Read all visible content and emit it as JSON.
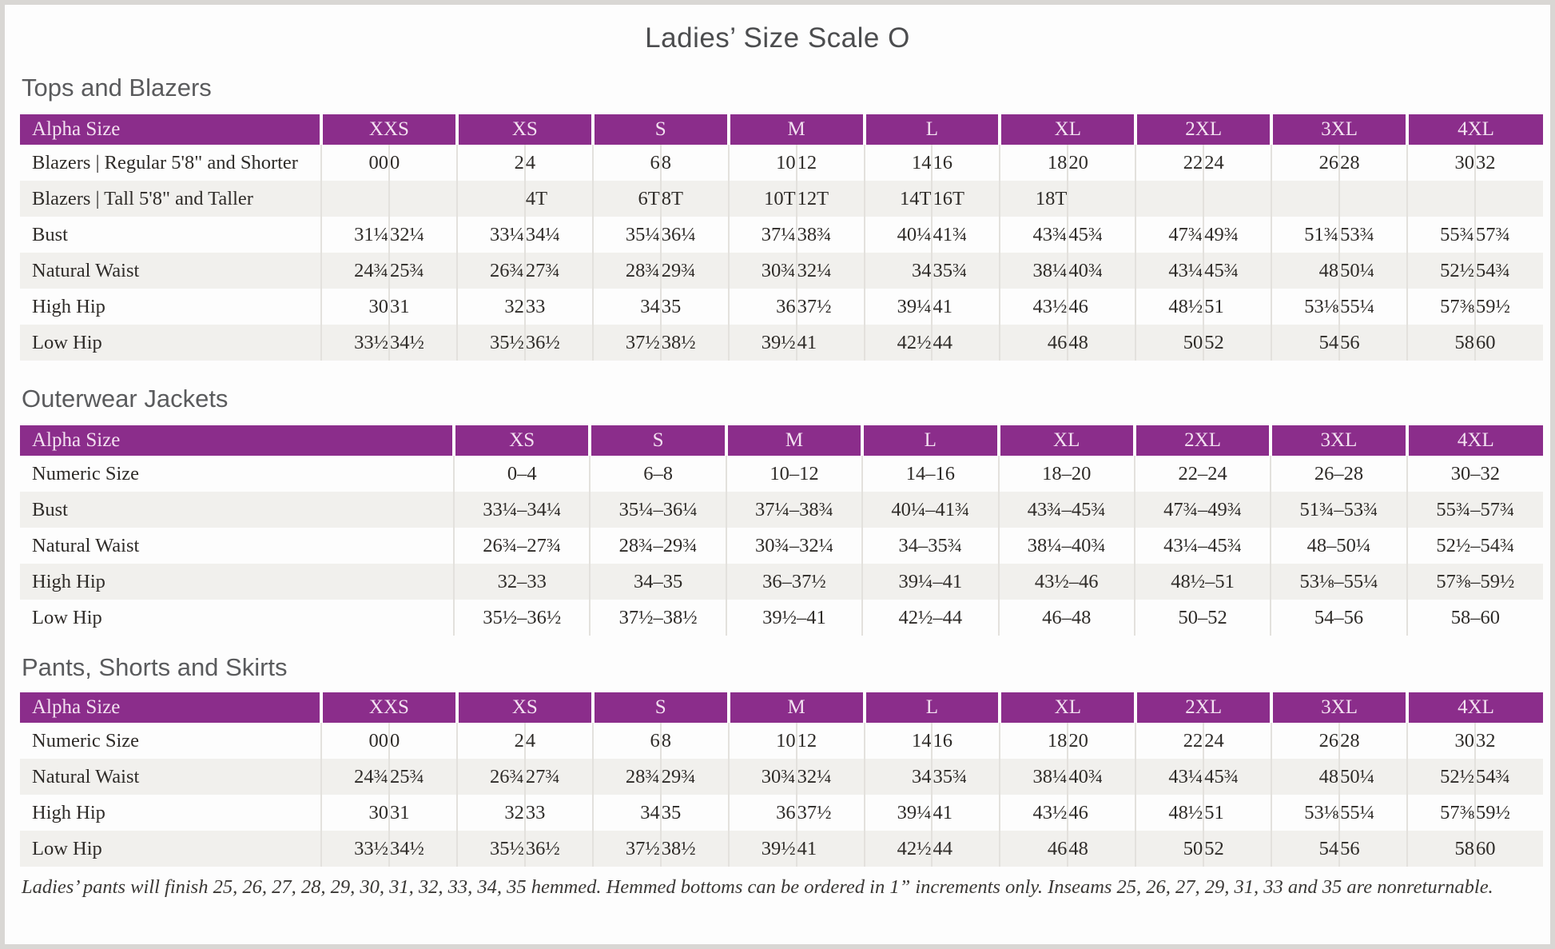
{
  "page": {
    "title": "Ladies’ Size Scale O",
    "footnote": "Ladies’ pants will finish 25, 26, 27, 28, 29, 30, 31, 32, 33, 34, 35 hemmed. Hemmed bottoms can be ordered in 1” increments only. Inseams 25, 26, 27, 29, 31, 33 and 35 are nonreturnable."
  },
  "colors": {
    "header_background": "#8b2d8b",
    "header_text": "#f3e1f1",
    "row_stripe": "#f1f0ed",
    "divider": "#e3e1dd"
  },
  "tables": [
    {
      "id": "tops-and-blazers",
      "section_title": "Tops and Blazers",
      "type": "paired",
      "header_label": "Alpha Size",
      "sizes": [
        "XXS",
        "XS",
        "S",
        "M",
        "L",
        "XL",
        "2XL",
        "3XL",
        "4XL"
      ],
      "rows": [
        {
          "label": "Blazers  |  Regular 5'8\" and Shorter",
          "cells": [
            "00",
            "0",
            "2",
            "4",
            "6",
            "8",
            "10",
            "12",
            "14",
            "16",
            "18",
            "20",
            "22",
            "24",
            "26",
            "28",
            "30",
            "32"
          ]
        },
        {
          "label": "Blazers  |  Tall 5'8\" and Taller",
          "cells": [
            "",
            "",
            "",
            "4T",
            "6T",
            "8T",
            "10T",
            "12T",
            "14T",
            "16T",
            "18T",
            "",
            "",
            "",
            "",
            "",
            "",
            ""
          ]
        },
        {
          "label": "Bust",
          "cells": [
            "31¼",
            "32¼",
            "33¼",
            "34¼",
            "35¼",
            "36¼",
            "37¼",
            "38¾",
            "40¼",
            "41¾",
            "43¾",
            "45¾",
            "47¾",
            "49¾",
            "51¾",
            "53¾",
            "55¾",
            "57¾"
          ]
        },
        {
          "label": "Natural Waist",
          "cells": [
            "24¾",
            "25¾",
            "26¾",
            "27¾",
            "28¾",
            "29¾",
            "30¾",
            "32¼",
            "34",
            "35¾",
            "38¼",
            "40¾",
            "43¼",
            "45¾",
            "48",
            "50¼",
            "52½",
            "54¾"
          ]
        },
        {
          "label": "High Hip",
          "cells": [
            "30",
            "31",
            "32",
            "33",
            "34",
            "35",
            "36",
            "37½",
            "39¼",
            "41",
            "43½",
            "46",
            "48½",
            "51",
            "53⅛",
            "55¼",
            "57⅜",
            "59½"
          ]
        },
        {
          "label": "Low Hip",
          "cells": [
            "33½",
            "34½",
            "35½",
            "36½",
            "37½",
            "38½",
            "39½",
            "41",
            "42½",
            "44",
            "46",
            "48",
            "50",
            "52",
            "54",
            "56",
            "58",
            "60"
          ]
        }
      ]
    },
    {
      "id": "outerwear-jackets",
      "section_title": "Outerwear Jackets",
      "type": "single",
      "header_label": "Alpha Size",
      "sizes": [
        "XS",
        "S",
        "M",
        "L",
        "XL",
        "2XL",
        "3XL",
        "4XL"
      ],
      "rows": [
        {
          "label": "Numeric Size",
          "cells": [
            "0–4",
            "6–8",
            "10–12",
            "14–16",
            "18–20",
            "22–24",
            "26–28",
            "30–32"
          ]
        },
        {
          "label": "Bust",
          "cells": [
            "33¼–34¼",
            "35¼–36¼",
            "37¼–38¾",
            "40¼–41¾",
            "43¾–45¾",
            "47¾–49¾",
            "51¾–53¾",
            "55¾–57¾"
          ]
        },
        {
          "label": "Natural Waist",
          "cells": [
            "26¾–27¾",
            "28¾–29¾",
            "30¾–32¼",
            "34–35¾",
            "38¼–40¾",
            "43¼–45¾",
            "48–50¼",
            "52½–54¾"
          ]
        },
        {
          "label": "High Hip",
          "cells": [
            "32–33",
            "34–35",
            "36–37½",
            "39¼–41",
            "43½–46",
            "48½–51",
            "53⅛–55¼",
            "57⅜–59½"
          ]
        },
        {
          "label": "Low Hip",
          "cells": [
            "35½–36½",
            "37½–38½",
            "39½–41",
            "42½–44",
            "46–48",
            "50–52",
            "54–56",
            "58–60"
          ]
        }
      ]
    },
    {
      "id": "pants-shorts-skirts",
      "section_title": "Pants, Shorts and Skirts",
      "type": "paired",
      "header_label": "Alpha Size",
      "sizes": [
        "XXS",
        "XS",
        "S",
        "M",
        "L",
        "XL",
        "2XL",
        "3XL",
        "4XL"
      ],
      "rows": [
        {
          "label": "Numeric Size",
          "cells": [
            "00",
            "0",
            "2",
            "4",
            "6",
            "8",
            "10",
            "12",
            "14",
            "16",
            "18",
            "20",
            "22",
            "24",
            "26",
            "28",
            "30",
            "32"
          ]
        },
        {
          "label": "Natural Waist",
          "cells": [
            "24¾",
            "25¾",
            "26¾",
            "27¾",
            "28¾",
            "29¾",
            "30¾",
            "32¼",
            "34",
            "35¾",
            "38¼",
            "40¾",
            "43¼",
            "45¾",
            "48",
            "50¼",
            "52½",
            "54¾"
          ]
        },
        {
          "label": "High Hip",
          "cells": [
            "30",
            "31",
            "32",
            "33",
            "34",
            "35",
            "36",
            "37½",
            "39¼",
            "41",
            "43½",
            "46",
            "48½",
            "51",
            "53⅛",
            "55¼",
            "57⅜",
            "59½"
          ]
        },
        {
          "label": "Low Hip",
          "cells": [
            "33½",
            "34½",
            "35½",
            "36½",
            "37½",
            "38½",
            "39½",
            "41",
            "42½",
            "44",
            "46",
            "48",
            "50",
            "52",
            "54",
            "56",
            "58",
            "60"
          ]
        }
      ]
    }
  ]
}
